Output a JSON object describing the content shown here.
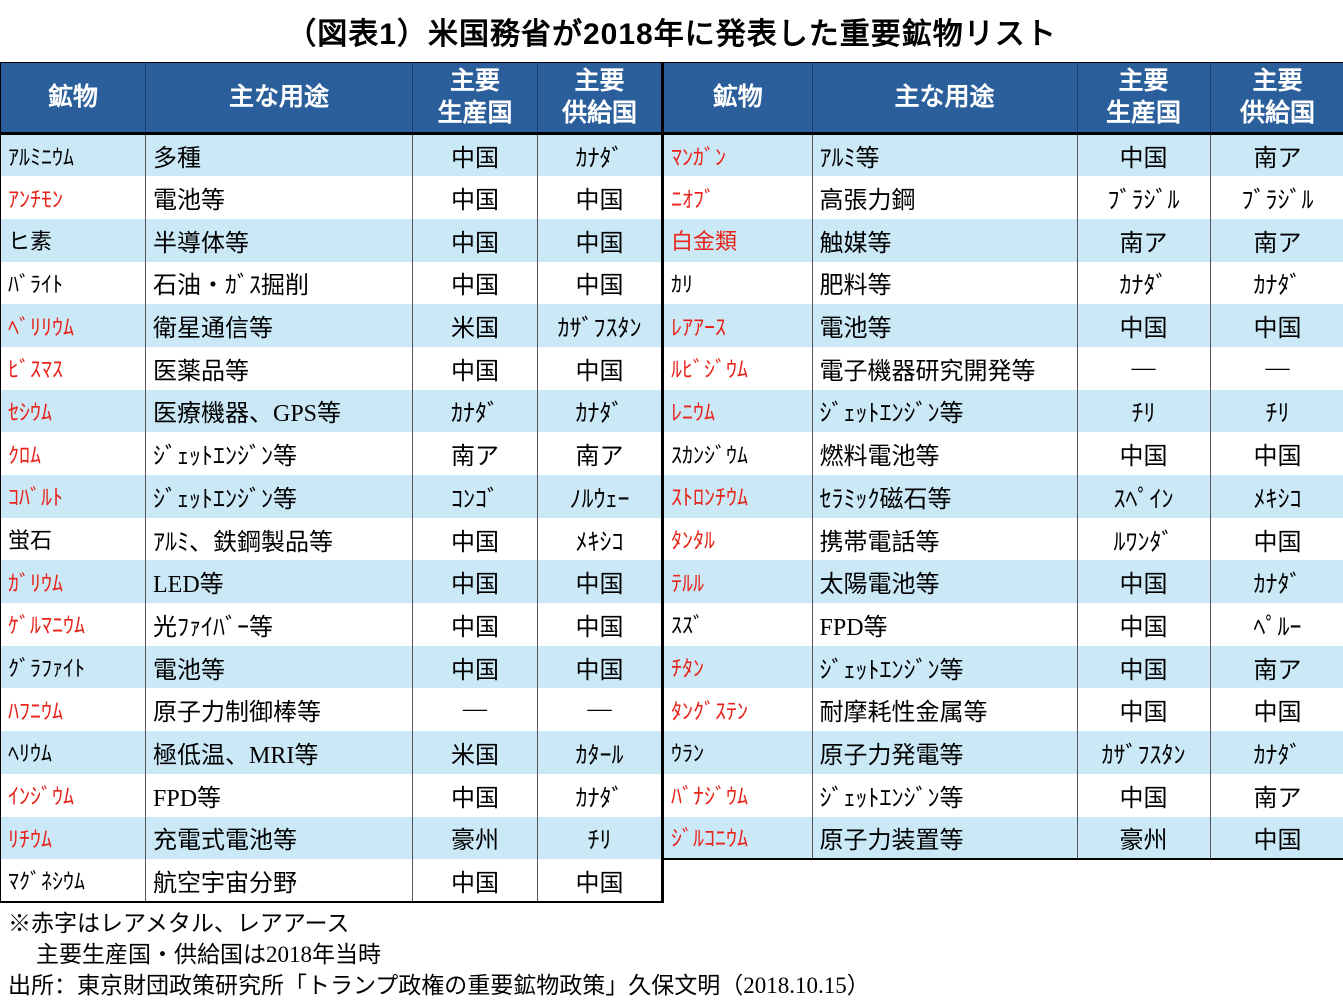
{
  "title": "（図表1）米国務省が2018年に発表した重要鉱物リスト",
  "colors": {
    "header_bg": "#2B5F9B",
    "header_text": "#FFFFFF",
    "row_alt_bg": "#CBE8F7",
    "red_text": "#E8231A"
  },
  "header": {
    "mineral": "鉱物",
    "use": "主な用途",
    "producer": "主要\n生産国",
    "supplier": "主要\n供給国"
  },
  "chart_data": {
    "type": "table",
    "title": "（図表1）米国務省が2018年に発表した重要鉱物リスト",
    "columns": [
      "鉱物",
      "主な用途",
      "主要生産国",
      "主要供給国"
    ],
    "legend_note": "赤字はレアメタル、レアアース",
    "left_rows": [
      {
        "mineral": "ｱﾙﾐﾆｳﾑ",
        "red": false,
        "use": "多種",
        "producer": "中国",
        "supplier": "ｶﾅﾀﾞ"
      },
      {
        "mineral": "ｱﾝﾁﾓﾝ",
        "red": true,
        "use": "電池等",
        "producer": "中国",
        "supplier": "中国"
      },
      {
        "mineral": "ヒ素",
        "red": false,
        "use": "半導体等",
        "producer": "中国",
        "supplier": "中国"
      },
      {
        "mineral": "ﾊﾞﾗｲﾄ",
        "red": false,
        "use": "石油・ｶﾞｽ掘削",
        "producer": "中国",
        "supplier": "中国"
      },
      {
        "mineral": "ﾍﾞﾘﾘｳﾑ",
        "red": true,
        "use": "衛星通信等",
        "producer": "米国",
        "supplier": "ｶｻﾞﾌｽﾀﾝ"
      },
      {
        "mineral": "ﾋﾞｽﾏｽ",
        "red": true,
        "use": "医薬品等",
        "producer": "中国",
        "supplier": "中国"
      },
      {
        "mineral": "ｾｼｳﾑ",
        "red": true,
        "use": "医療機器、GPS等",
        "producer": "ｶﾅﾀﾞ",
        "supplier": "ｶﾅﾀﾞ"
      },
      {
        "mineral": "ｸﾛﾑ",
        "red": true,
        "use": "ｼﾞｪｯﾄｴﾝｼﾞﾝ等",
        "producer": "南ア",
        "supplier": "南ア"
      },
      {
        "mineral": "ｺﾊﾞﾙﾄ",
        "red": true,
        "use": "ｼﾞｪｯﾄｴﾝｼﾞﾝ等",
        "producer": "ｺﾝｺﾞ",
        "supplier": "ﾉﾙｳｪｰ"
      },
      {
        "mineral": "蛍石",
        "red": false,
        "use": "ｱﾙﾐ、鉄鋼製品等",
        "producer": "中国",
        "supplier": "ﾒｷｼｺ"
      },
      {
        "mineral": "ｶﾞﾘｳﾑ",
        "red": true,
        "use": "LED等",
        "producer": "中国",
        "supplier": "中国"
      },
      {
        "mineral": "ｹﾞﾙﾏﾆｳﾑ",
        "red": true,
        "use": "光ﾌｧｲﾊﾞｰ等",
        "producer": "中国",
        "supplier": "中国"
      },
      {
        "mineral": "ｸﾞﾗﾌｧｲﾄ",
        "red": false,
        "use": "電池等",
        "producer": "中国",
        "supplier": "中国"
      },
      {
        "mineral": "ﾊﾌﾆｳﾑ",
        "red": true,
        "use": "原子力制御棒等",
        "producer": "―",
        "supplier": "―"
      },
      {
        "mineral": "ﾍﾘｳﾑ",
        "red": false,
        "use": "極低温、MRI等",
        "producer": "米国",
        "supplier": "ｶﾀｰﾙ"
      },
      {
        "mineral": "ｲﾝｼﾞｳﾑ",
        "red": true,
        "use": "FPD等",
        "producer": "中国",
        "supplier": "ｶﾅﾀﾞ"
      },
      {
        "mineral": "ﾘﾁｳﾑ",
        "red": true,
        "use": "充電式電池等",
        "producer": "豪州",
        "supplier": "ﾁﾘ"
      },
      {
        "mineral": "ﾏｸﾞﾈｼｳﾑ",
        "red": false,
        "use": "航空宇宙分野",
        "producer": "中国",
        "supplier": "中国"
      }
    ],
    "right_rows": [
      {
        "mineral": "ﾏﾝｶﾞﾝ",
        "red": true,
        "use": "ｱﾙﾐ等",
        "producer": "中国",
        "supplier": "南ア"
      },
      {
        "mineral": "ﾆｵﾌﾞ",
        "red": true,
        "use": "高張力鋼",
        "producer": "ﾌﾞﾗｼﾞﾙ",
        "supplier": "ﾌﾞﾗｼﾞﾙ"
      },
      {
        "mineral": "白金類",
        "red": true,
        "use": "触媒等",
        "producer": "南ア",
        "supplier": "南ア"
      },
      {
        "mineral": "ｶﾘ",
        "red": false,
        "use": "肥料等",
        "producer": "ｶﾅﾀﾞ",
        "supplier": "ｶﾅﾀﾞ"
      },
      {
        "mineral": "ﾚｱｱｰｽ",
        "red": true,
        "use": "電池等",
        "producer": "中国",
        "supplier": "中国"
      },
      {
        "mineral": "ﾙﾋﾞｼﾞｳﾑ",
        "red": true,
        "use": "電子機器研究開発等",
        "producer": "―",
        "supplier": "―"
      },
      {
        "mineral": "ﾚﾆｳﾑ",
        "red": true,
        "use": "ｼﾞｪｯﾄｴﾝｼﾞﾝ等",
        "producer": "ﾁﾘ",
        "supplier": "ﾁﾘ"
      },
      {
        "mineral": "ｽｶﾝｼﾞｳﾑ",
        "red": false,
        "use": "燃料電池等",
        "producer": "中国",
        "supplier": "中国"
      },
      {
        "mineral": "ｽﾄﾛﾝﾁｳﾑ",
        "red": true,
        "use": "ｾﾗﾐｯｸ磁石等",
        "producer": "ｽﾍﾟｲﾝ",
        "supplier": "ﾒｷｼｺ"
      },
      {
        "mineral": "ﾀﾝﾀﾙ",
        "red": true,
        "use": "携帯電話等",
        "producer": "ﾙﾜﾝﾀﾞ",
        "supplier": "中国"
      },
      {
        "mineral": "ﾃﾙﾙ",
        "red": true,
        "use": "太陽電池等",
        "producer": "中国",
        "supplier": "ｶﾅﾀﾞ"
      },
      {
        "mineral": "ｽｽﾞ",
        "red": false,
        "use": "FPD等",
        "producer": "中国",
        "supplier": "ﾍﾟﾙｰ"
      },
      {
        "mineral": "ﾁﾀﾝ",
        "red": true,
        "use": "ｼﾞｪｯﾄｴﾝｼﾞﾝ等",
        "producer": "中国",
        "supplier": "南ア"
      },
      {
        "mineral": "ﾀﾝｸﾞｽﾃﾝ",
        "red": true,
        "use": "耐摩耗性金属等",
        "producer": "中国",
        "supplier": "中国"
      },
      {
        "mineral": "ｳﾗﾝ",
        "red": false,
        "use": "原子力発電等",
        "producer": "ｶｻﾞﾌｽﾀﾝ",
        "supplier": "ｶﾅﾀﾞ"
      },
      {
        "mineral": "ﾊﾞﾅｼﾞｳﾑ",
        "red": true,
        "use": "ｼﾞｪｯﾄｴﾝｼﾞﾝ等",
        "producer": "中国",
        "supplier": "南ア"
      },
      {
        "mineral": "ｼﾞﾙｺﾆｳﾑ",
        "red": true,
        "use": "原子力装置等",
        "producer": "豪州",
        "supplier": "中国"
      }
    ]
  },
  "notes": {
    "line1": "※赤字はレアメタル、レアアース",
    "line2": "主要生産国・供給国は2018年当時",
    "line3": "出所：東京財団政策研究所「トランプ政権の重要鉱物政策」久保文明（2018.10.15）"
  }
}
